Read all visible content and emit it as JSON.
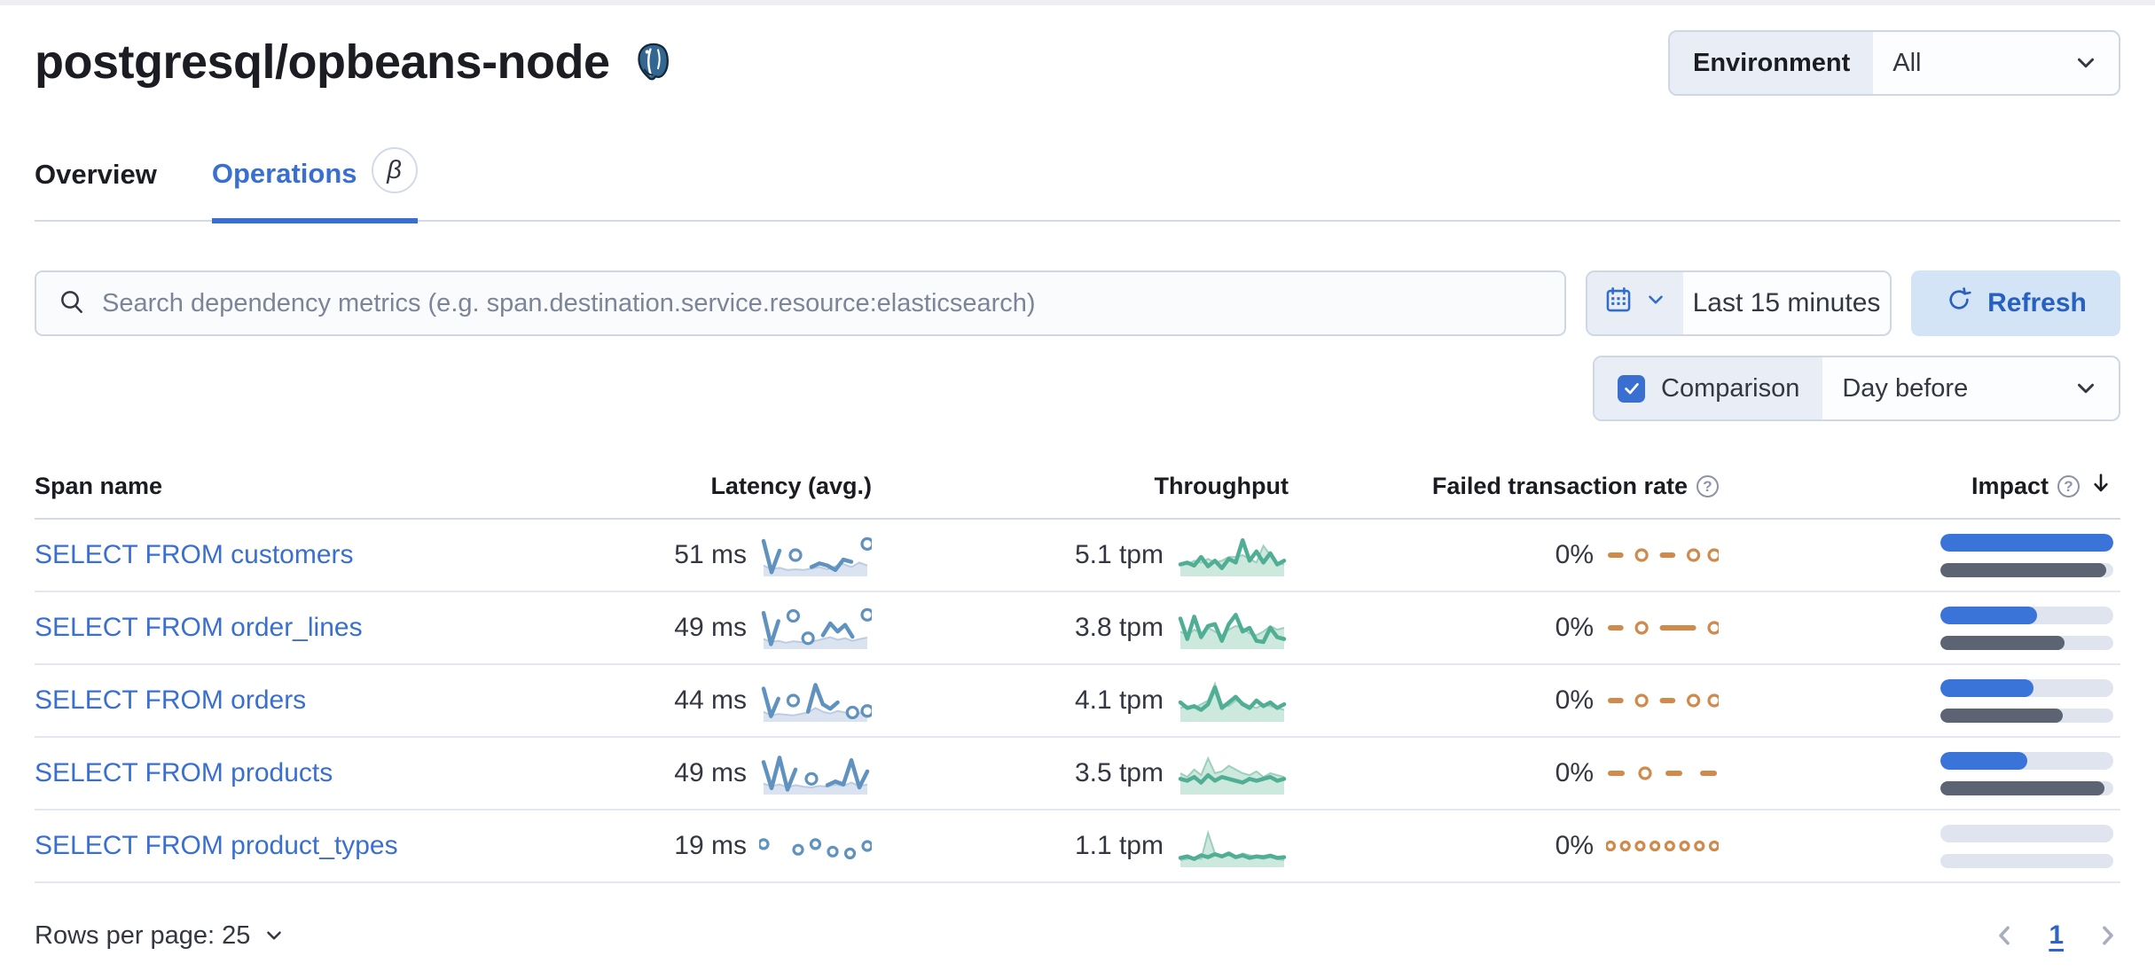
{
  "header": {
    "title": "postgresql/opbeans-node",
    "icon": "postgresql-elephant"
  },
  "environment": {
    "label": "Environment",
    "value": "All"
  },
  "tabs": [
    {
      "label": "Overview",
      "active": false
    },
    {
      "label": "Operations",
      "active": true,
      "beta": "β"
    }
  ],
  "search": {
    "placeholder": "Search dependency metrics (e.g. span.destination.service.resource:elasticsearch)"
  },
  "time": {
    "range": "Last 15 minutes",
    "refresh_label": "Refresh"
  },
  "comparison": {
    "label": "Comparison",
    "checked": true,
    "value": "Day before"
  },
  "table": {
    "columns": [
      "Span name",
      "Latency (avg.)",
      "Throughput",
      "Failed transaction rate",
      "Impact"
    ],
    "rows": [
      {
        "span_name": "SELECT FROM customers",
        "latency": "51 ms",
        "throughput": "5.1 tpm",
        "failed_rate": "0%",
        "impact_pct": 100,
        "impact_prev_pct": 96,
        "latency_spark": {
          "points": [
            0.88,
            0.04,
            0.62,
            null,
            0.5,
            null,
            0.18,
            0.28,
            0.22,
            0.1,
            0.38,
            0.32,
            null,
            0.8
          ],
          "comp": [
            0.22,
            0.12,
            0.16,
            0.1,
            0.12,
            0.1,
            0.14,
            0.18,
            0.12,
            0.2,
            0.26,
            0.18,
            0.3,
            0.22
          ]
        },
        "throughput_spark": {
          "points": [
            0.25,
            0.3,
            0.22,
            0.45,
            0.2,
            0.35,
            0.15,
            0.4,
            0.3,
            0.9,
            0.35,
            0.6,
            0.3,
            0.55,
            0.25,
            0.35
          ],
          "comp": [
            0.3,
            0.25,
            0.35,
            0.3,
            0.4,
            0.3,
            0.35,
            0.45,
            0.45,
            0.5,
            0.4,
            0.3,
            0.75,
            0.5,
            0.3,
            0.25
          ]
        },
        "failed_spark": {
          "points": [
            0.5,
            0.5,
            null,
            0.5,
            null,
            0.5,
            0.5,
            null,
            0.5,
            null,
            0.5
          ]
        }
      },
      {
        "span_name": "SELECT FROM order_lines",
        "latency": "49 ms",
        "throughput": "3.8 tpm",
        "failed_rate": "0%",
        "impact_pct": 56,
        "impact_prev_pct": 72,
        "latency_spark": {
          "points": [
            0.9,
            0.06,
            0.68,
            null,
            0.82,
            null,
            0.22,
            null,
            0.3,
            0.62,
            0.4,
            0.58,
            0.26,
            null,
            0.85
          ],
          "comp": [
            0.2,
            0.12,
            0.15,
            0.1,
            0.14,
            0.12,
            0.1,
            0.15,
            0.2,
            0.25,
            0.18,
            0.22,
            0.15,
            0.2,
            0.24
          ]
        },
        "throughput_spark": {
          "points": [
            0.75,
            0.2,
            0.8,
            0.25,
            0.55,
            0.6,
            0.15,
            0.6,
            0.85,
            0.4,
            0.5,
            0.15,
            0.12,
            0.5,
            0.25,
            0.2
          ],
          "comp": [
            0.4,
            0.3,
            0.45,
            0.35,
            0.5,
            0.4,
            0.3,
            0.45,
            0.55,
            0.5,
            0.35,
            0.3,
            0.4,
            0.55,
            0.45,
            0.5
          ]
        },
        "failed_spark": {
          "points": [
            0.5,
            0.5,
            null,
            0.5,
            null,
            0.5,
            0.5,
            0.5,
            0.5,
            null,
            0.5
          ]
        }
      },
      {
        "span_name": "SELECT FROM orders",
        "latency": "44 ms",
        "throughput": "4.1 tpm",
        "failed_rate": "0%",
        "impact_pct": 54,
        "impact_prev_pct": 71,
        "latency_spark": {
          "points": [
            0.82,
            0.08,
            0.55,
            null,
            0.5,
            null,
            0.2,
            0.92,
            0.4,
            0.28,
            0.45,
            null,
            0.18,
            null,
            0.22
          ],
          "comp": [
            0.2,
            0.1,
            0.14,
            0.12,
            0.1,
            0.14,
            0.18,
            0.3,
            0.2,
            0.15,
            0.22,
            0.18,
            0.12,
            0.16,
            0.2
          ]
        },
        "throughput_spark": {
          "points": [
            0.45,
            0.3,
            0.35,
            0.25,
            0.4,
            0.85,
            0.3,
            0.45,
            0.6,
            0.4,
            0.3,
            0.5,
            0.35,
            0.45,
            0.3,
            0.4
          ],
          "comp": [
            0.3,
            0.35,
            0.3,
            0.4,
            0.5,
            0.95,
            0.4,
            0.35,
            0.5,
            0.45,
            0.35,
            0.3,
            0.4,
            0.35,
            0.3,
            0.25
          ]
        },
        "failed_spark": {
          "points": [
            0.5,
            0.5,
            null,
            0.5,
            null,
            0.5,
            0.5,
            null,
            0.5,
            null,
            0.5
          ]
        }
      },
      {
        "span_name": "SELECT FROM products",
        "latency": "49 ms",
        "throughput": "3.5 tpm",
        "failed_rate": "0%",
        "impact_pct": 50,
        "impact_prev_pct": 95,
        "latency_spark": {
          "points": [
            0.8,
            0.1,
            0.92,
            0.06,
            0.6,
            null,
            0.35,
            null,
            0.18,
            0.28,
            0.2,
            0.85,
            0.12,
            0.55
          ],
          "comp": [
            0.22,
            0.15,
            0.2,
            0.12,
            0.18,
            0.14,
            0.12,
            0.16,
            0.14,
            0.2,
            0.16,
            0.25,
            0.15,
            0.2
          ]
        },
        "throughput_spark": {
          "points": [
            0.35,
            0.3,
            0.4,
            0.25,
            0.45,
            0.3,
            0.4,
            0.35,
            0.3,
            0.25,
            0.35,
            0.3,
            0.35,
            0.4,
            0.3,
            0.35
          ],
          "comp": [
            0.5,
            0.4,
            0.6,
            0.45,
            0.9,
            0.5,
            0.55,
            0.7,
            0.6,
            0.5,
            0.45,
            0.55,
            0.4,
            0.5,
            0.45,
            0.4
          ]
        },
        "failed_spark": {
          "points": [
            0.5,
            0.5,
            null,
            0.5,
            null,
            0.5,
            0.5,
            null,
            0.5,
            0.5
          ]
        }
      },
      {
        "span_name": "SELECT FROM product_types",
        "latency": "19 ms",
        "throughput": "1.1 tpm",
        "failed_rate": "0%",
        "impact_pct": 0,
        "impact_prev_pct": 0,
        "latency_spark": {
          "points": [
            0.55,
            null,
            null,
            null,
            0.4,
            null,
            0.55,
            null,
            0.35,
            null,
            0.3,
            null,
            0.5
          ],
          "small": true,
          "comp": []
        },
        "throughput_spark": {
          "points": [
            0.18,
            0.22,
            0.15,
            0.25,
            0.2,
            0.28,
            0.22,
            0.3,
            0.2,
            0.25,
            0.18,
            0.22,
            0.2,
            0.24,
            0.18,
            0.2
          ],
          "comp": [
            0.12,
            0.15,
            0.2,
            0.15,
            0.85,
            0.3,
            0.2,
            0.25,
            0.2,
            0.3,
            0.25,
            0.2,
            0.15,
            0.2,
            0.15,
            0.12
          ]
        },
        "failed_spark": {
          "points": [
            0.5,
            null,
            0.5,
            null,
            0.5,
            null,
            0.5,
            null,
            0.5,
            null,
            0.5,
            null,
            0.5,
            null,
            0.5
          ],
          "small": true
        }
      }
    ]
  },
  "pagination": {
    "rows_per_page_label": "Rows per page: 25",
    "page": "1"
  },
  "colors": {
    "primary": "#3a6fd2",
    "latency_line": "#6092C0",
    "latency_comp_fill": "#dbe3f1",
    "latency_comp_edge": "#bccbe2",
    "throughput_line": "#4fae93",
    "throughput_comp_fill": "#cde8dc",
    "throughput_comp_edge": "#9ccfbc",
    "failed_line": "#cf8a4c",
    "impact_current": "#3b74d8",
    "impact_previous": "#5c6372",
    "impact_track": "#dfe4ee"
  }
}
